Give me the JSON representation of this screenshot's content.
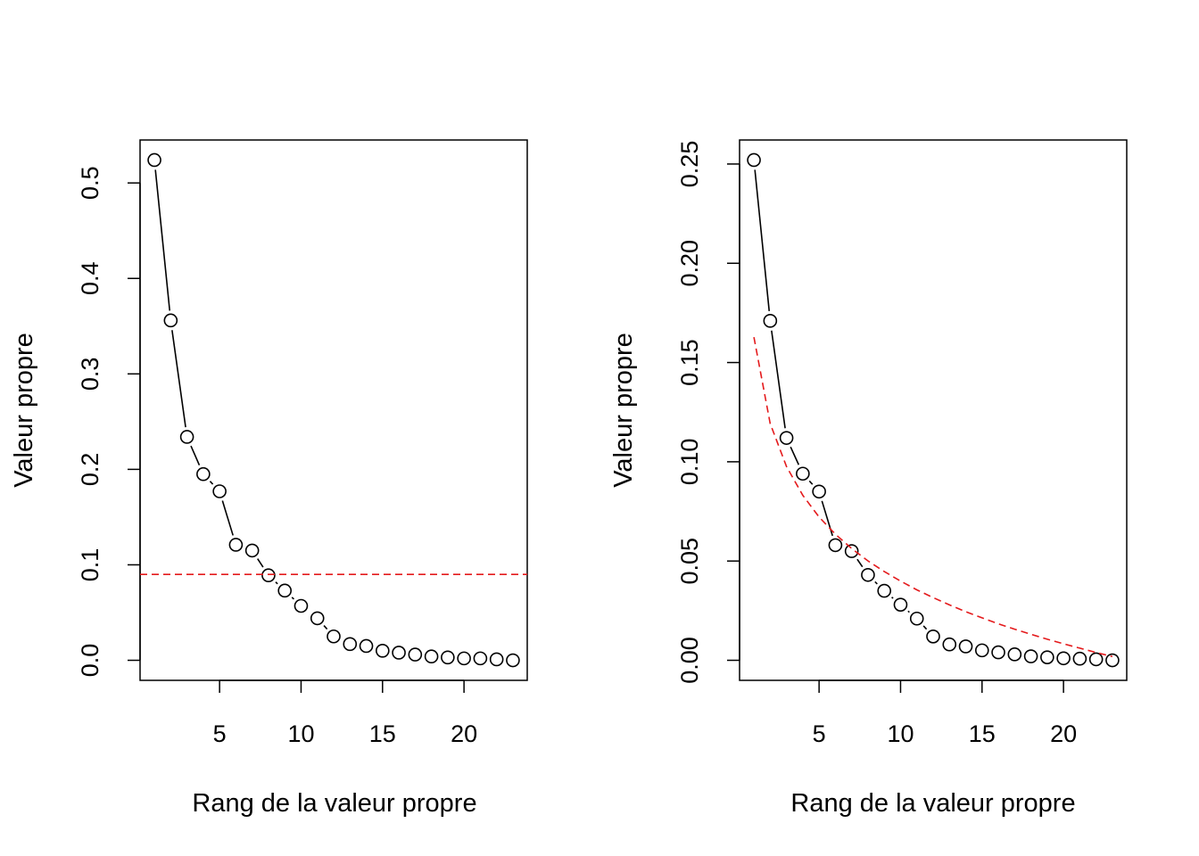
{
  "colors": {
    "points": "#000000",
    "reference_line": "#e41a1c",
    "background": "#ffffff"
  },
  "chart_data": [
    {
      "type": "scatter",
      "xlabel": "Rang de la valeur propre",
      "ylabel": "Valeur propre",
      "xlim": [
        0.12,
        23.88
      ],
      "ylim": [
        -0.021,
        0.545
      ],
      "xticks": [
        5,
        10,
        15,
        20
      ],
      "xtick_labels": [
        "5",
        "10",
        "15",
        "20"
      ],
      "yticks": [
        0.0,
        0.1,
        0.2,
        0.3,
        0.4,
        0.5
      ],
      "ytick_labels": [
        "0.0",
        "0.1",
        "0.2",
        "0.3",
        "0.4",
        "0.5"
      ],
      "series": [
        {
          "style": "points-connected",
          "x": [
            1,
            2,
            3,
            4,
            5,
            6,
            7,
            8,
            9,
            10,
            11,
            12,
            13,
            14,
            15,
            16,
            17,
            18,
            19,
            20,
            21,
            22,
            23
          ],
          "y": [
            0.524,
            0.356,
            0.234,
            0.195,
            0.177,
            0.121,
            0.115,
            0.089,
            0.073,
            0.057,
            0.044,
            0.025,
            0.017,
            0.015,
            0.01,
            0.008,
            0.006,
            0.004,
            0.003,
            0.002,
            0.002,
            0.001,
            0.0
          ]
        }
      ],
      "reference_line": {
        "type": "horizontal",
        "y": 0.09,
        "style": "dashed",
        "color": "#e41a1c"
      },
      "grid": false,
      "legend": "none"
    },
    {
      "type": "scatter",
      "xlabel": "Rang de la valeur propre",
      "ylabel": "Valeur propre",
      "xlim": [
        0.12,
        23.88
      ],
      "ylim": [
        -0.0101,
        0.2621
      ],
      "xticks": [
        5,
        10,
        15,
        20
      ],
      "xtick_labels": [
        "5",
        "10",
        "15",
        "20"
      ],
      "yticks": [
        0.0,
        0.05,
        0.1,
        0.15,
        0.2,
        0.25
      ],
      "ytick_labels": [
        "0.00",
        "0.05",
        "0.10",
        "0.15",
        "0.20",
        "0.25"
      ],
      "series": [
        {
          "style": "points-connected",
          "x": [
            1,
            2,
            3,
            4,
            5,
            6,
            7,
            8,
            9,
            10,
            11,
            12,
            13,
            14,
            15,
            16,
            17,
            18,
            19,
            20,
            21,
            22,
            23
          ],
          "y": [
            0.252,
            0.171,
            0.112,
            0.094,
            0.085,
            0.058,
            0.055,
            0.043,
            0.035,
            0.028,
            0.021,
            0.012,
            0.008,
            0.007,
            0.005,
            0.004,
            0.003,
            0.002,
            0.0015,
            0.001,
            0.0008,
            0.0005,
            0.0
          ]
        },
        {
          "style": "dashed-curve",
          "color": "#e41a1c",
          "x": [
            1,
            2,
            3,
            4,
            5,
            6,
            7,
            8,
            9,
            10,
            11,
            12,
            13,
            14,
            15,
            16,
            17,
            18,
            19,
            20,
            21,
            22,
            23
          ],
          "y": [
            0.1628,
            0.1193,
            0.0976,
            0.0831,
            0.0722,
            0.0635,
            0.0563,
            0.0501,
            0.0447,
            0.0399,
            0.0355,
            0.0316,
            0.0279,
            0.0245,
            0.0214,
            0.0184,
            0.0157,
            0.0131,
            0.0106,
            0.0083,
            0.0061,
            0.0039,
            0.0019
          ]
        }
      ],
      "grid": false,
      "legend": "none"
    }
  ]
}
